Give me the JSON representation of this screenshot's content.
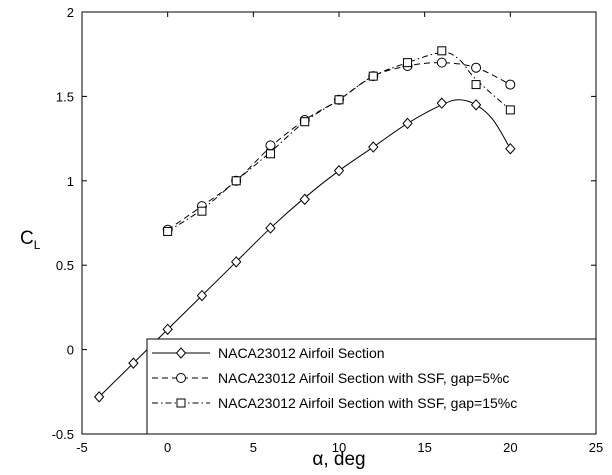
{
  "chart_data": {
    "type": "line",
    "title": "",
    "xlabel": "α, deg",
    "ylabel": "C",
    "ylabel_subscript": "L",
    "xlim": [
      -5,
      25
    ],
    "ylim": [
      -0.5,
      2
    ],
    "xticks": [
      -5,
      0,
      5,
      10,
      15,
      20,
      25
    ],
    "yticks": [
      -0.5,
      0,
      0.5,
      1,
      1.5,
      2
    ],
    "xtick_labels": [
      "-5",
      "0",
      "5",
      "10",
      "15",
      "20",
      "25"
    ],
    "ytick_labels": [
      "-0.5",
      "0",
      "0.5",
      "1",
      "1.5",
      "2"
    ],
    "grid": false,
    "legend_position": "bottom-right",
    "series": [
      {
        "name": "NACA23012 Airfoil Section",
        "marker": "diamond",
        "line_style": "solid",
        "color": "#000000",
        "points": [
          [
            -4,
            -0.28
          ],
          [
            -2,
            -0.08
          ],
          [
            0,
            0.12
          ],
          [
            2,
            0.32
          ],
          [
            4,
            0.52
          ],
          [
            6,
            0.72
          ],
          [
            8,
            0.89
          ],
          [
            10,
            1.06
          ],
          [
            12,
            1.2
          ],
          [
            14,
            1.34
          ],
          [
            16,
            1.46
          ],
          [
            18,
            1.45
          ],
          [
            20,
            1.19
          ]
        ],
        "curve": [
          [
            -4,
            -0.28
          ],
          [
            -2,
            -0.08
          ],
          [
            0,
            0.12
          ],
          [
            2,
            0.32
          ],
          [
            4,
            0.52
          ],
          [
            6,
            0.72
          ],
          [
            8,
            0.9
          ],
          [
            10,
            1.06
          ],
          [
            12,
            1.2
          ],
          [
            14,
            1.34
          ],
          [
            16,
            1.45
          ],
          [
            17,
            1.48
          ],
          [
            18,
            1.45
          ],
          [
            19,
            1.36
          ],
          [
            20,
            1.19
          ]
        ]
      },
      {
        "name": "NACA23012 Airfoil Section with SSF, gap=5%c",
        "marker": "circle",
        "line_style": "dashed",
        "color": "#000000",
        "points": [
          [
            0,
            0.71
          ],
          [
            2,
            0.85
          ],
          [
            4,
            1.0
          ],
          [
            6,
            1.21
          ],
          [
            8,
            1.36
          ],
          [
            10,
            1.48
          ],
          [
            12,
            1.62
          ],
          [
            14,
            1.68
          ],
          [
            16,
            1.7
          ],
          [
            18,
            1.67
          ],
          [
            20,
            1.57
          ]
        ],
        "curve": [
          [
            0,
            0.71
          ],
          [
            2,
            0.85
          ],
          [
            4,
            1.0
          ],
          [
            6,
            1.2
          ],
          [
            8,
            1.36
          ],
          [
            10,
            1.48
          ],
          [
            12,
            1.62
          ],
          [
            14,
            1.68
          ],
          [
            16,
            1.7
          ],
          [
            18,
            1.67
          ],
          [
            20,
            1.57
          ]
        ]
      },
      {
        "name": "NACA23012 Airfoil Section with SSF, gap=15%c",
        "marker": "square",
        "line_style": "dashdot",
        "color": "#000000",
        "points": [
          [
            0,
            0.7
          ],
          [
            2,
            0.82
          ],
          [
            4,
            1.0
          ],
          [
            6,
            1.16
          ],
          [
            8,
            1.35
          ],
          [
            10,
            1.48
          ],
          [
            12,
            1.62
          ],
          [
            14,
            1.7
          ],
          [
            16,
            1.77
          ],
          [
            18,
            1.57
          ],
          [
            20,
            1.42
          ]
        ],
        "curve": [
          [
            0,
            0.7
          ],
          [
            2,
            0.83
          ],
          [
            4,
            1.0
          ],
          [
            6,
            1.17
          ],
          [
            8,
            1.35
          ],
          [
            10,
            1.48
          ],
          [
            12,
            1.62
          ],
          [
            14,
            1.7
          ],
          [
            16,
            1.76
          ],
          [
            17,
            1.72
          ],
          [
            18,
            1.6
          ],
          [
            20,
            1.42
          ]
        ]
      }
    ]
  }
}
